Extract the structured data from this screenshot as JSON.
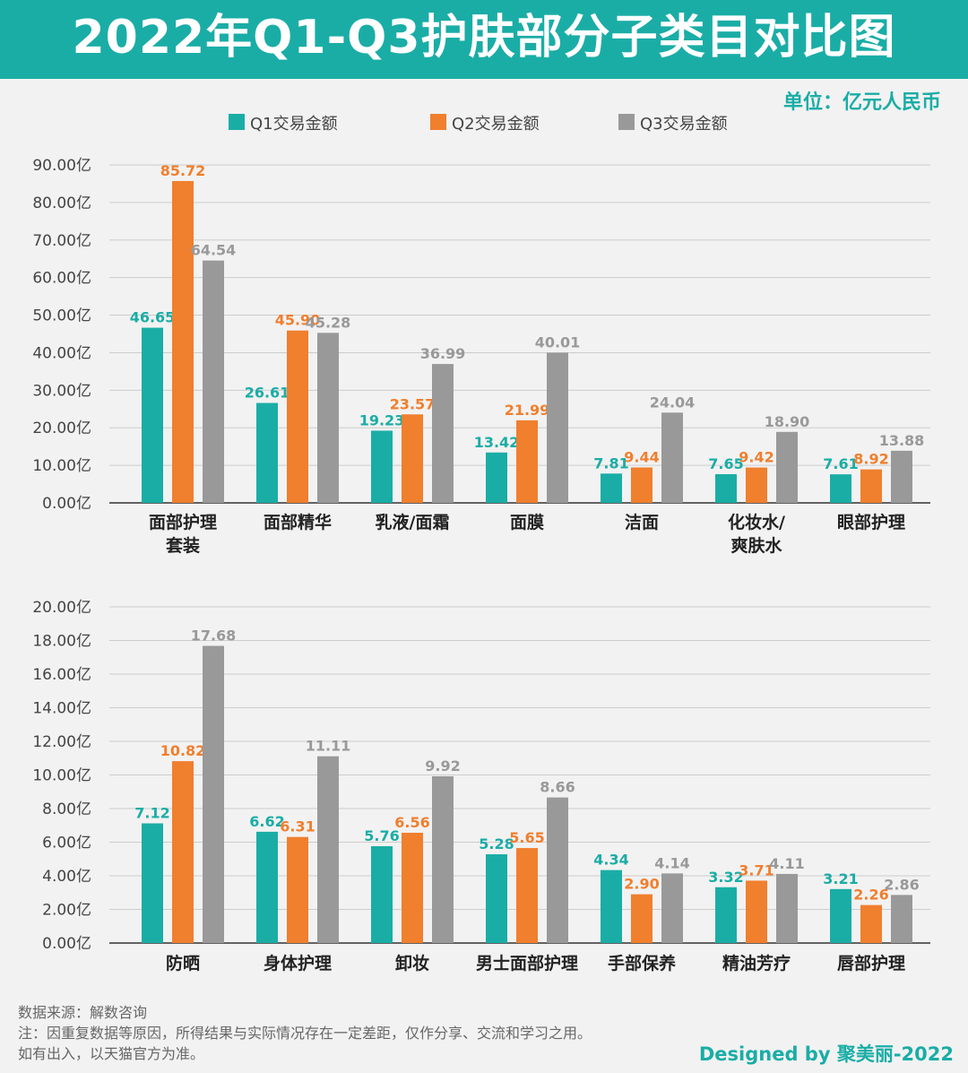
{
  "title": "2022年Q1-Q3护肤部分子类目对比图",
  "unit": "单位：亿元人民币",
  "notes": [
    "数据来源：解数咨询",
    "注：因重复数据等原因，所得结果与实际情况存在一定差距，仅作分享、交流和学习之用。",
    "如有出入，以天猫官方为准。"
  ],
  "credit": "Designed by 聚美丽-2022",
  "colors": {
    "Q1": "#1aada6",
    "Q2": "#f07f2e",
    "Q3": "#999999",
    "banner": "#1aada6"
  },
  "chart_data": [
    {
      "type": "bar",
      "legend_position": "top",
      "grid": true,
      "ylim": [
        0,
        90
      ],
      "yticks": [
        "0.00亿",
        "10.00亿",
        "20.00亿",
        "30.00亿",
        "40.00亿",
        "50.00亿",
        "60.00亿",
        "70.00亿",
        "80.00亿",
        "90.00亿"
      ],
      "categories": [
        "面部护理\n套装",
        "面部精华",
        "乳液/面霜",
        "面膜",
        "洁面",
        "化妆水/\n爽肤水",
        "眼部护理"
      ],
      "series": [
        {
          "name": "Q1交易金额",
          "values": [
            46.65,
            26.61,
            19.23,
            13.42,
            7.81,
            7.65,
            7.61
          ],
          "labels": [
            "46.65",
            "26.61",
            "19.23",
            "13.42",
            "7.81",
            "7.65",
            "7.61"
          ]
        },
        {
          "name": "Q2交易金额",
          "values": [
            85.72,
            45.9,
            23.57,
            21.99,
            9.44,
            9.42,
            8.92
          ],
          "labels": [
            "85.72",
            "45.90",
            "23.57",
            "21.99",
            "9.44",
            "9.42",
            "8.92"
          ]
        },
        {
          "name": "Q3交易金额",
          "values": [
            64.54,
            45.28,
            36.99,
            40.01,
            24.04,
            18.9,
            13.88
          ],
          "labels": [
            "64.54",
            "45.28",
            "36.99",
            "40.01",
            "24.04",
            "18.90",
            "13.88"
          ]
        }
      ]
    },
    {
      "type": "bar",
      "grid": true,
      "ylim": [
        0,
        20
      ],
      "yticks": [
        "0.00亿",
        "2.00亿",
        "4.00亿",
        "6.00亿",
        "8.00亿",
        "10.00亿",
        "12.00亿",
        "14.00亿",
        "16.00亿",
        "18.00亿",
        "20.00亿"
      ],
      "categories": [
        "防晒",
        "身体护理",
        "卸妆",
        "男士面部护理",
        "手部保养",
        "精油芳疗",
        "唇部护理"
      ],
      "series": [
        {
          "name": "Q1交易金额",
          "values": [
            7.12,
            6.62,
            5.76,
            5.28,
            4.34,
            3.32,
            3.21
          ],
          "labels": [
            "7.12",
            "6.62",
            "5.76",
            "5.28",
            "4.34",
            "3.32",
            "3.21"
          ]
        },
        {
          "name": "Q2交易金额",
          "values": [
            10.82,
            6.31,
            6.56,
            5.65,
            2.9,
            3.71,
            2.26
          ],
          "labels": [
            "10.82",
            "6.31",
            "6.56",
            "5.65",
            "2.90",
            "3.71",
            "2.26"
          ]
        },
        {
          "name": "Q3交易金额",
          "values": [
            17.68,
            11.11,
            9.92,
            8.66,
            4.14,
            4.11,
            2.86
          ],
          "labels": [
            "17.68",
            "11.11",
            "9.92",
            "8.66",
            "4.14",
            "4.11",
            "2.86"
          ]
        }
      ]
    }
  ]
}
